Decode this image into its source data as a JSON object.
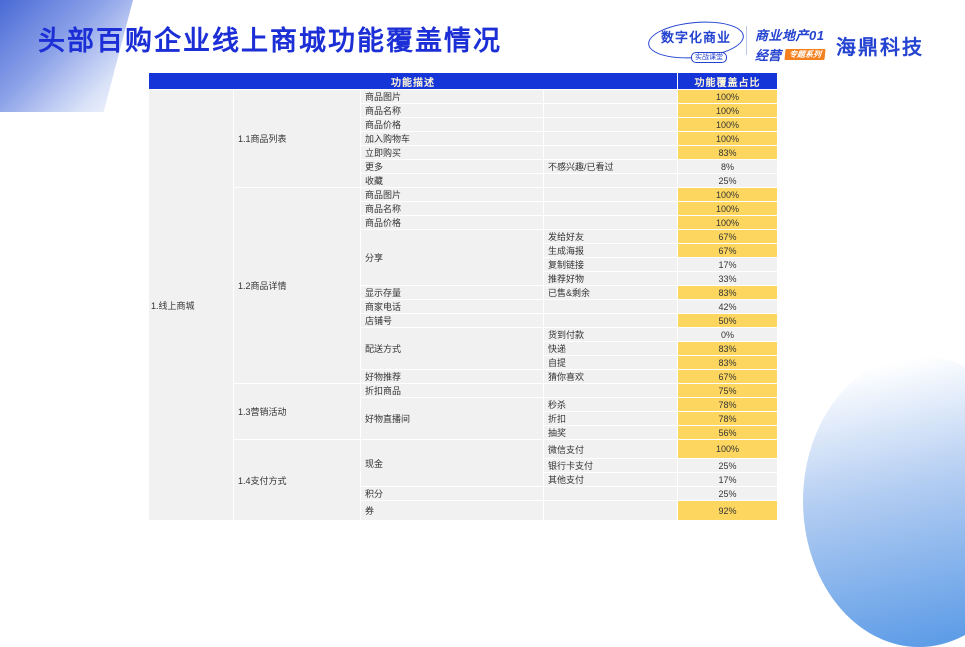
{
  "title": "头部百购企业线上商城功能覆盖情况",
  "logos": {
    "logo1_main": "数字化商业",
    "logo1_sub": "实战课堂",
    "logo2_line1": "商业地产01",
    "logo2_line2": "经营",
    "logo2_badge": "专题系列",
    "logo3": "海鼎科技"
  },
  "colors": {
    "title_blue": "#1C2FD6",
    "header_bg": "#1535D8",
    "header_text": "#FDF5D7",
    "highlight_yellow": "#FCD65F",
    "cell_gray": "#F1F1F1",
    "logo_blue": "#2443D0",
    "badge_orange": "#F5801E"
  },
  "table": {
    "header_desc": "功能描述",
    "header_pct": "功能覆盖占比",
    "group1": "1.线上商城",
    "rows": [
      {
        "c2": "1.1商品列表",
        "c2span": 7,
        "c3": "商品图片",
        "c4": "",
        "pct": "100%",
        "hl": true
      },
      {
        "c3": "商品名称",
        "c4": "",
        "pct": "100%",
        "hl": true
      },
      {
        "c3": "商品价格",
        "c4": "",
        "pct": "100%",
        "hl": true
      },
      {
        "c3": "加入购物车",
        "c4": "",
        "pct": "100%",
        "hl": true
      },
      {
        "c3": "立即购买",
        "c4": "",
        "pct": "83%",
        "hl": true
      },
      {
        "c3": "更多",
        "c4": "不感兴趣/已看过",
        "pct": "8%",
        "hl": false
      },
      {
        "c3": "收藏",
        "c4": "",
        "pct": "25%",
        "hl": false
      },
      {
        "c2": "1.2商品详情",
        "c2span": 14,
        "c3": "商品图片",
        "c4": "",
        "pct": "100%",
        "hl": true
      },
      {
        "c3": "商品名称",
        "c4": "",
        "pct": "100%",
        "hl": true
      },
      {
        "c3": "商品价格",
        "c4": "",
        "pct": "100%",
        "hl": true
      },
      {
        "c3": "分享",
        "c3span": 4,
        "c4": "发给好友",
        "pct": "67%",
        "hl": true
      },
      {
        "c4": "生成海报",
        "pct": "67%",
        "hl": true
      },
      {
        "c4": "复制链接",
        "pct": "17%",
        "hl": false
      },
      {
        "c4": "推荐好物",
        "pct": "33%",
        "hl": false
      },
      {
        "c3": "显示存量",
        "c4": "已售&剩余",
        "pct": "83%",
        "hl": true
      },
      {
        "c3": "商家电话",
        "c4": "",
        "pct": "42%",
        "hl": false
      },
      {
        "c3": "店铺号",
        "c4": "",
        "pct": "50%",
        "hl": true
      },
      {
        "c3": "配送方式",
        "c3span": 3,
        "c4": "货到付款",
        "pct": "0%",
        "hl": false
      },
      {
        "c4": "快递",
        "pct": "83%",
        "hl": true
      },
      {
        "c4": "自提",
        "pct": "83%",
        "hl": true
      },
      {
        "c3": "好物推荐",
        "c4": "猜你喜欢",
        "pct": "67%",
        "hl": true
      },
      {
        "c2": "1.3营销活动",
        "c2span": 4,
        "c3": "折扣商品",
        "c4": "",
        "pct": "75%",
        "hl": true
      },
      {
        "c3": "好物直播间",
        "c3span": 3,
        "c4": "秒杀",
        "pct": "78%",
        "hl": true
      },
      {
        "c4": "折扣",
        "pct": "78%",
        "hl": true
      },
      {
        "c4": "抽奖",
        "pct": "56%",
        "hl": true
      },
      {
        "c2": "1.4支付方式",
        "c2span": 5,
        "c3": "现金",
        "c3span": 3,
        "c4": "微信支付",
        "pct": "100%",
        "hl": true,
        "hm": 1.6
      },
      {
        "c4": "银行卡支付",
        "pct": "25%",
        "hl": false
      },
      {
        "c4": "其他支付",
        "pct": "17%",
        "hl": false
      },
      {
        "c3": "积分",
        "c4": "",
        "pct": "25%",
        "hl": false
      },
      {
        "c3": "券",
        "c4": "",
        "pct": "92%",
        "hl": true,
        "hm": 1.7
      }
    ]
  }
}
